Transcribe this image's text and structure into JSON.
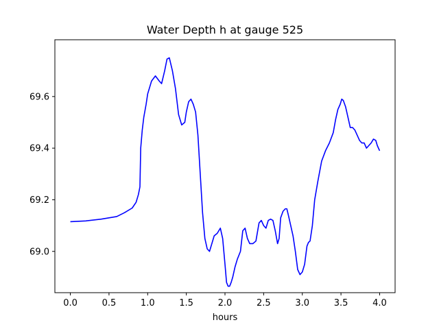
{
  "chart_data": {
    "type": "line",
    "title": "Water Depth h at gauge 525",
    "xlabel": "hours",
    "ylabel": "",
    "xlim": [
      -0.2,
      4.2
    ],
    "ylim": [
      68.84,
      69.82
    ],
    "grid": false,
    "x_ticks": [
      {
        "value": 0.0,
        "label": "0.0"
      },
      {
        "value": 0.5,
        "label": "0.5"
      },
      {
        "value": 1.0,
        "label": "1.0"
      },
      {
        "value": 1.5,
        "label": "1.5"
      },
      {
        "value": 2.0,
        "label": "2.0"
      },
      {
        "value": 2.5,
        "label": "2.5"
      },
      {
        "value": 3.0,
        "label": "3.0"
      },
      {
        "value": 3.5,
        "label": "3.5"
      },
      {
        "value": 4.0,
        "label": "4.0"
      }
    ],
    "y_ticks": [
      {
        "value": 69.0,
        "label": "69.0"
      },
      {
        "value": 69.2,
        "label": "69.2"
      },
      {
        "value": 69.4,
        "label": "69.4"
      },
      {
        "value": 69.6,
        "label": "69.6"
      }
    ],
    "series": [
      {
        "color": "#0000ff",
        "x": [
          0.0,
          0.2,
          0.4,
          0.6,
          0.7,
          0.8,
          0.85,
          0.88,
          0.9,
          0.91,
          0.93,
          0.95,
          0.98,
          1.0,
          1.05,
          1.1,
          1.15,
          1.18,
          1.22,
          1.25,
          1.28,
          1.32,
          1.36,
          1.4,
          1.44,
          1.48,
          1.5,
          1.53,
          1.56,
          1.59,
          1.62,
          1.65,
          1.68,
          1.71,
          1.74,
          1.77,
          1.8,
          1.83,
          1.86,
          1.9,
          1.94,
          1.97,
          2.0,
          2.02,
          2.04,
          2.06,
          2.08,
          2.1,
          2.13,
          2.16,
          2.2,
          2.23,
          2.26,
          2.29,
          2.32,
          2.36,
          2.4,
          2.44,
          2.47,
          2.5,
          2.53,
          2.56,
          2.59,
          2.62,
          2.65,
          2.68,
          2.7,
          2.72,
          2.75,
          2.78,
          2.8,
          2.82,
          2.85,
          2.88,
          2.91,
          2.94,
          2.97,
          3.0,
          3.03,
          3.06,
          3.08,
          3.1,
          3.13,
          3.16,
          3.2,
          3.25,
          3.3,
          3.35,
          3.4,
          3.43,
          3.46,
          3.49,
          3.51,
          3.53,
          3.56,
          3.59,
          3.62,
          3.65,
          3.68,
          3.71,
          3.74,
          3.77,
          3.8,
          3.83,
          3.86,
          3.89,
          3.92,
          3.95,
          3.97,
          4.0
        ],
        "y": [
          69.115,
          69.118,
          69.125,
          69.135,
          69.15,
          69.168,
          69.19,
          69.22,
          69.25,
          69.4,
          69.47,
          69.52,
          69.57,
          69.61,
          69.66,
          69.68,
          69.66,
          69.65,
          69.7,
          69.745,
          69.75,
          69.7,
          69.63,
          69.53,
          69.49,
          69.5,
          69.54,
          69.58,
          69.59,
          69.57,
          69.54,
          69.45,
          69.3,
          69.15,
          69.05,
          69.01,
          69.0,
          69.03,
          69.06,
          69.07,
          69.09,
          69.05,
          68.95,
          68.88,
          68.865,
          68.865,
          68.88,
          68.9,
          68.94,
          68.97,
          69.0,
          69.08,
          69.09,
          69.05,
          69.03,
          69.03,
          69.04,
          69.11,
          69.12,
          69.1,
          69.09,
          69.12,
          69.125,
          69.12,
          69.08,
          69.03,
          69.05,
          69.13,
          69.155,
          69.165,
          69.165,
          69.14,
          69.1,
          69.06,
          69.0,
          68.93,
          68.91,
          68.92,
          68.95,
          69.02,
          69.035,
          69.04,
          69.1,
          69.2,
          69.27,
          69.35,
          69.39,
          69.42,
          69.46,
          69.51,
          69.55,
          69.57,
          69.59,
          69.585,
          69.56,
          69.52,
          69.48,
          69.48,
          69.47,
          69.45,
          69.43,
          69.42,
          69.42,
          69.4,
          69.41,
          69.42,
          69.435,
          69.43,
          69.41,
          69.39
        ]
      }
    ]
  }
}
